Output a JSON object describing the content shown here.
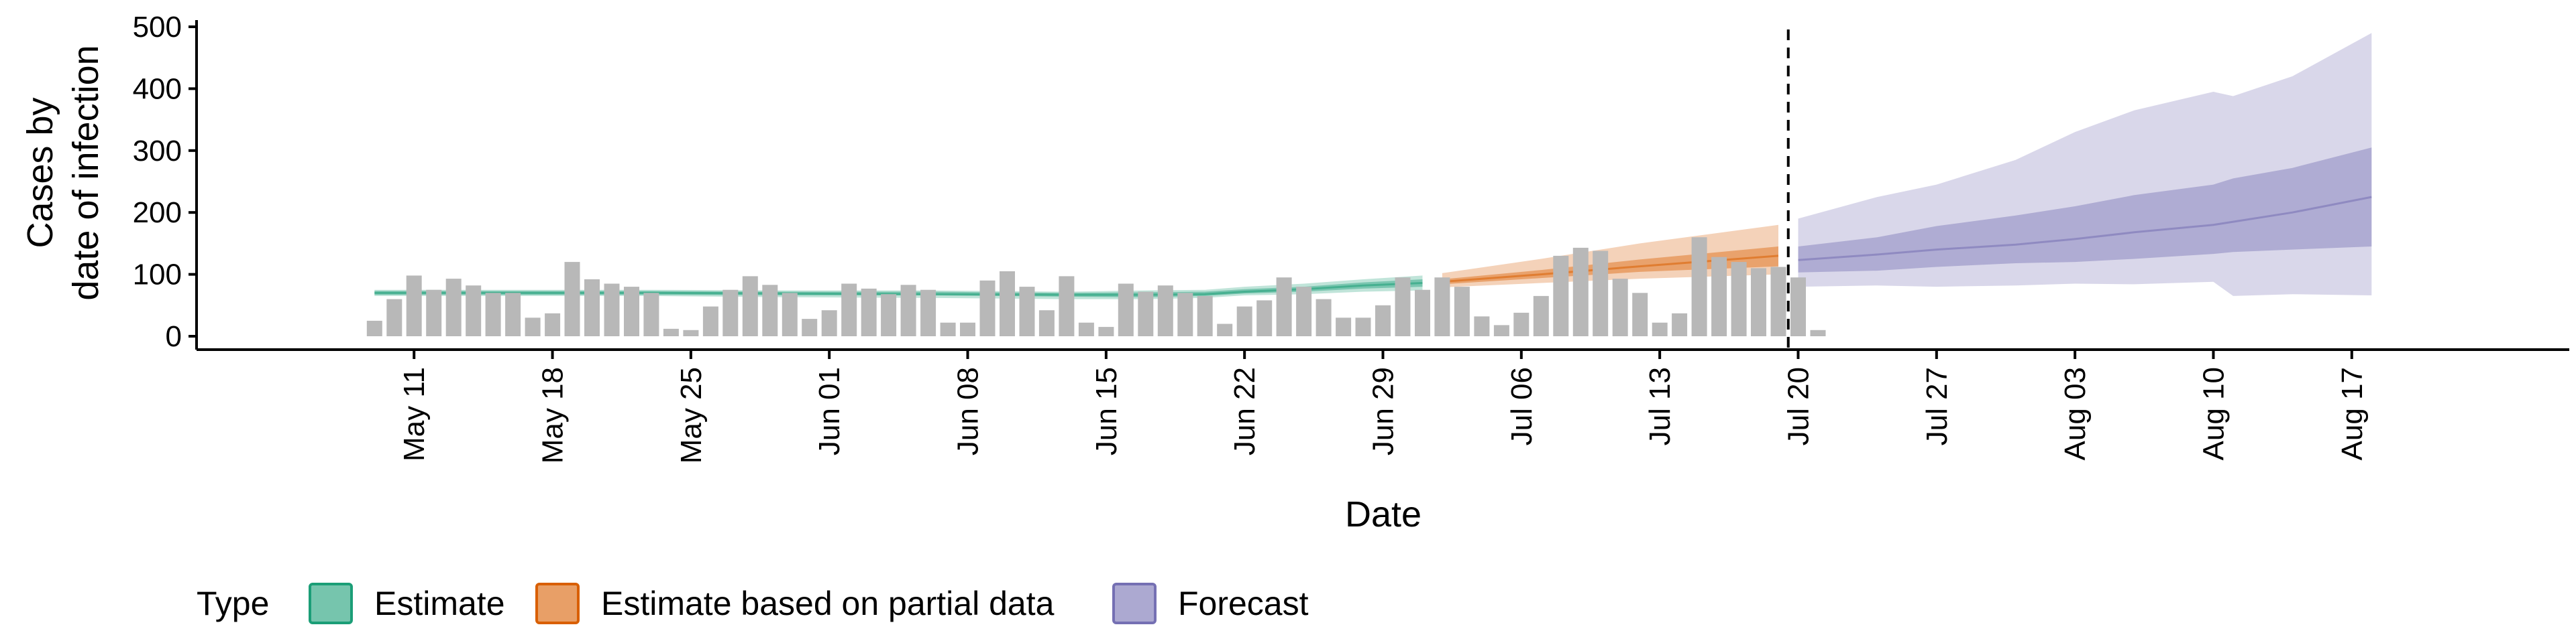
{
  "chart_data": {
    "type": "area",
    "xlabel": "Date",
    "ylabel": [
      "Cases by",
      "date of infection"
    ],
    "ylim": [
      0,
      500
    ],
    "yticks": [
      0,
      100,
      200,
      300,
      400,
      500
    ],
    "xticks": [
      {
        "date": "2020-05-11",
        "label": "May 11"
      },
      {
        "date": "2020-05-18",
        "label": "May 18"
      },
      {
        "date": "2020-05-25",
        "label": "May 25"
      },
      {
        "date": "2020-06-01",
        "label": "Jun 01"
      },
      {
        "date": "2020-06-08",
        "label": "Jun 08"
      },
      {
        "date": "2020-06-15",
        "label": "Jun 15"
      },
      {
        "date": "2020-06-22",
        "label": "Jun 22"
      },
      {
        "date": "2020-06-29",
        "label": "Jun 29"
      },
      {
        "date": "2020-07-06",
        "label": "Jul 06"
      },
      {
        "date": "2020-07-13",
        "label": "Jul 13"
      },
      {
        "date": "2020-07-20",
        "label": "Jul 20"
      },
      {
        "date": "2020-07-27",
        "label": "Jul 27"
      },
      {
        "date": "2020-08-03",
        "label": "Aug 03"
      },
      {
        "date": "2020-08-10",
        "label": "Aug 10"
      },
      {
        "date": "2020-08-17",
        "label": "Aug 17"
      }
    ],
    "xlim": [
      "2020-04-30",
      "2020-08-28"
    ],
    "forecast_start": "2020-07-19",
    "grid": false,
    "legend": {
      "placement": "bottom",
      "title": "Type",
      "entries": [
        {
          "label": "Estimate",
          "color": "#1b9e77"
        },
        {
          "label": "Estimate based on partial data",
          "color": "#d95f02"
        },
        {
          "label": "Forecast",
          "color": "#7570b3"
        }
      ]
    },
    "bars": {
      "color": "#b8b8b8",
      "start_date": "2020-05-09",
      "values": [
        25,
        60,
        98,
        75,
        93,
        82,
        70,
        70,
        30,
        37,
        120,
        92,
        85,
        80,
        70,
        12,
        10,
        48,
        75,
        97,
        83,
        70,
        28,
        42,
        85,
        77,
        68,
        83,
        75,
        22,
        22,
        90,
        105,
        80,
        42,
        97,
        22,
        15,
        85,
        72,
        82,
        70,
        65,
        20,
        48,
        58,
        95,
        80,
        60,
        30,
        30,
        50,
        95,
        75,
        95,
        80,
        32,
        18,
        38,
        65,
        130,
        143,
        138,
        93,
        70,
        22,
        37,
        160,
        128,
        120,
        110,
        112,
        95,
        10
      ]
    },
    "series": [
      {
        "name": "Estimate",
        "color": "#1b9e77",
        "dates": [
          "2020-05-09",
          "2020-05-16",
          "2020-05-23",
          "2020-05-30",
          "2020-06-06",
          "2020-06-13",
          "2020-06-17",
          "2020-06-20",
          "2020-06-22",
          "2020-06-25",
          "2020-06-28",
          "2020-07-01"
        ],
        "median": [
          70,
          70,
          70,
          69,
          68,
          67,
          67,
          68,
          72,
          76,
          82,
          86
        ],
        "inner_low": [
          67,
          67,
          67,
          66,
          66,
          64,
          63,
          65,
          69,
          72,
          77,
          80
        ],
        "inner_high": [
          73,
          73,
          73,
          72,
          72,
          70,
          71,
          72,
          76,
          80,
          87,
          92
        ],
        "outer_low": [
          65,
          65,
          65,
          63,
          62,
          60,
          60,
          62,
          66,
          68,
          72,
          74
        ],
        "outer_high": [
          75,
          75,
          75,
          74,
          74,
          72,
          74,
          75,
          80,
          85,
          92,
          98
        ]
      },
      {
        "name": "Estimate based on partial data",
        "color": "#d95f02",
        "dates": [
          "2020-07-02",
          "2020-07-07",
          "2020-07-12",
          "2020-07-19"
        ],
        "median": [
          88,
          100,
          113,
          130
        ],
        "inner_low": [
          84,
          94,
          104,
          113
        ],
        "inner_high": [
          92,
          107,
          124,
          145
        ],
        "outer_low": [
          79,
          86,
          93,
          100
        ],
        "outer_high": [
          102,
          125,
          150,
          180
        ]
      },
      {
        "name": "Forecast",
        "color": "#7570b3",
        "dates": [
          "2020-07-20",
          "2020-07-24",
          "2020-07-27",
          "2020-07-31",
          "2020-08-03",
          "2020-08-06",
          "2020-08-10",
          "2020-08-11",
          "2020-08-14",
          "2020-08-18"
        ],
        "median": [
          123,
          132,
          140,
          148,
          157,
          168,
          180,
          185,
          200,
          225
        ],
        "inner_low": [
          103,
          106,
          112,
          118,
          120,
          125,
          133,
          136,
          140,
          145
        ],
        "inner_high": [
          145,
          160,
          178,
          195,
          210,
          228,
          245,
          255,
          272,
          305
        ],
        "outer_low": [
          80,
          82,
          80,
          82,
          85,
          84,
          88,
          65,
          68,
          66
        ],
        "outer_high": [
          190,
          225,
          245,
          285,
          330,
          365,
          395,
          388,
          420,
          490
        ]
      }
    ]
  }
}
